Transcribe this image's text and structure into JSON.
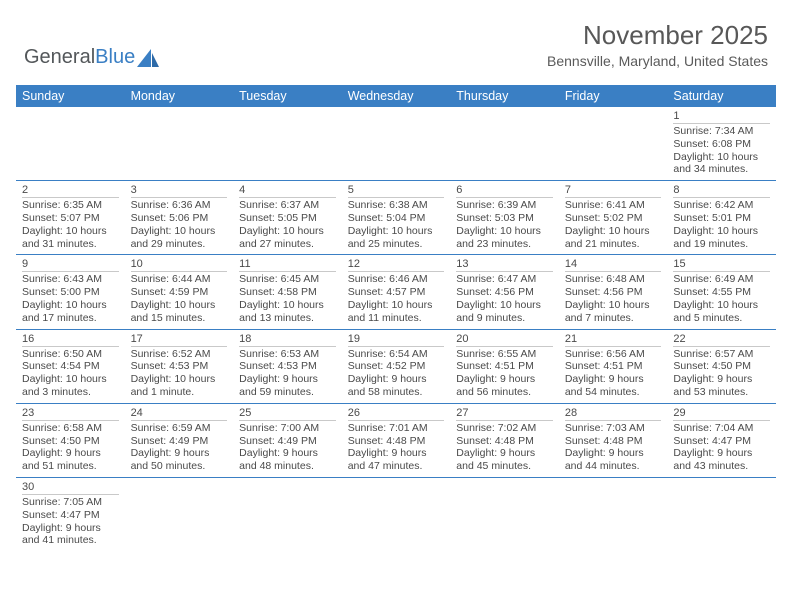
{
  "logo": {
    "text_a": "General",
    "text_b": "Blue"
  },
  "title": {
    "month": "November 2025",
    "location": "Bennsville, Maryland, United States"
  },
  "colors": {
    "header_bg": "#3a7fc4",
    "header_text": "#ffffff",
    "rule": "#3a7fc4",
    "text": "#4a4a4a",
    "logo_gray": "#53575a",
    "logo_blue": "#3a7fc4"
  },
  "day_labels": [
    "Sunday",
    "Monday",
    "Tuesday",
    "Wednesday",
    "Thursday",
    "Friday",
    "Saturday"
  ],
  "weeks": [
    [
      null,
      null,
      null,
      null,
      null,
      null,
      {
        "n": "1",
        "sunrise": "7:34 AM",
        "sunset": "6:08 PM",
        "dl1": "Daylight: 10 hours",
        "dl2": "and 34 minutes."
      }
    ],
    [
      {
        "n": "2",
        "sunrise": "6:35 AM",
        "sunset": "5:07 PM",
        "dl1": "Daylight: 10 hours",
        "dl2": "and 31 minutes."
      },
      {
        "n": "3",
        "sunrise": "6:36 AM",
        "sunset": "5:06 PM",
        "dl1": "Daylight: 10 hours",
        "dl2": "and 29 minutes."
      },
      {
        "n": "4",
        "sunrise": "6:37 AM",
        "sunset": "5:05 PM",
        "dl1": "Daylight: 10 hours",
        "dl2": "and 27 minutes."
      },
      {
        "n": "5",
        "sunrise": "6:38 AM",
        "sunset": "5:04 PM",
        "dl1": "Daylight: 10 hours",
        "dl2": "and 25 minutes."
      },
      {
        "n": "6",
        "sunrise": "6:39 AM",
        "sunset": "5:03 PM",
        "dl1": "Daylight: 10 hours",
        "dl2": "and 23 minutes."
      },
      {
        "n": "7",
        "sunrise": "6:41 AM",
        "sunset": "5:02 PM",
        "dl1": "Daylight: 10 hours",
        "dl2": "and 21 minutes."
      },
      {
        "n": "8",
        "sunrise": "6:42 AM",
        "sunset": "5:01 PM",
        "dl1": "Daylight: 10 hours",
        "dl2": "and 19 minutes."
      }
    ],
    [
      {
        "n": "9",
        "sunrise": "6:43 AM",
        "sunset": "5:00 PM",
        "dl1": "Daylight: 10 hours",
        "dl2": "and 17 minutes."
      },
      {
        "n": "10",
        "sunrise": "6:44 AM",
        "sunset": "4:59 PM",
        "dl1": "Daylight: 10 hours",
        "dl2": "and 15 minutes."
      },
      {
        "n": "11",
        "sunrise": "6:45 AM",
        "sunset": "4:58 PM",
        "dl1": "Daylight: 10 hours",
        "dl2": "and 13 minutes."
      },
      {
        "n": "12",
        "sunrise": "6:46 AM",
        "sunset": "4:57 PM",
        "dl1": "Daylight: 10 hours",
        "dl2": "and 11 minutes."
      },
      {
        "n": "13",
        "sunrise": "6:47 AM",
        "sunset": "4:56 PM",
        "dl1": "Daylight: 10 hours",
        "dl2": "and 9 minutes."
      },
      {
        "n": "14",
        "sunrise": "6:48 AM",
        "sunset": "4:56 PM",
        "dl1": "Daylight: 10 hours",
        "dl2": "and 7 minutes."
      },
      {
        "n": "15",
        "sunrise": "6:49 AM",
        "sunset": "4:55 PM",
        "dl1": "Daylight: 10 hours",
        "dl2": "and 5 minutes."
      }
    ],
    [
      {
        "n": "16",
        "sunrise": "6:50 AM",
        "sunset": "4:54 PM",
        "dl1": "Daylight: 10 hours",
        "dl2": "and 3 minutes."
      },
      {
        "n": "17",
        "sunrise": "6:52 AM",
        "sunset": "4:53 PM",
        "dl1": "Daylight: 10 hours",
        "dl2": "and 1 minute."
      },
      {
        "n": "18",
        "sunrise": "6:53 AM",
        "sunset": "4:53 PM",
        "dl1": "Daylight: 9 hours",
        "dl2": "and 59 minutes."
      },
      {
        "n": "19",
        "sunrise": "6:54 AM",
        "sunset": "4:52 PM",
        "dl1": "Daylight: 9 hours",
        "dl2": "and 58 minutes."
      },
      {
        "n": "20",
        "sunrise": "6:55 AM",
        "sunset": "4:51 PM",
        "dl1": "Daylight: 9 hours",
        "dl2": "and 56 minutes."
      },
      {
        "n": "21",
        "sunrise": "6:56 AM",
        "sunset": "4:51 PM",
        "dl1": "Daylight: 9 hours",
        "dl2": "and 54 minutes."
      },
      {
        "n": "22",
        "sunrise": "6:57 AM",
        "sunset": "4:50 PM",
        "dl1": "Daylight: 9 hours",
        "dl2": "and 53 minutes."
      }
    ],
    [
      {
        "n": "23",
        "sunrise": "6:58 AM",
        "sunset": "4:50 PM",
        "dl1": "Daylight: 9 hours",
        "dl2": "and 51 minutes."
      },
      {
        "n": "24",
        "sunrise": "6:59 AM",
        "sunset": "4:49 PM",
        "dl1": "Daylight: 9 hours",
        "dl2": "and 50 minutes."
      },
      {
        "n": "25",
        "sunrise": "7:00 AM",
        "sunset": "4:49 PM",
        "dl1": "Daylight: 9 hours",
        "dl2": "and 48 minutes."
      },
      {
        "n": "26",
        "sunrise": "7:01 AM",
        "sunset": "4:48 PM",
        "dl1": "Daylight: 9 hours",
        "dl2": "and 47 minutes."
      },
      {
        "n": "27",
        "sunrise": "7:02 AM",
        "sunset": "4:48 PM",
        "dl1": "Daylight: 9 hours",
        "dl2": "and 45 minutes."
      },
      {
        "n": "28",
        "sunrise": "7:03 AM",
        "sunset": "4:48 PM",
        "dl1": "Daylight: 9 hours",
        "dl2": "and 44 minutes."
      },
      {
        "n": "29",
        "sunrise": "7:04 AM",
        "sunset": "4:47 PM",
        "dl1": "Daylight: 9 hours",
        "dl2": "and 43 minutes."
      }
    ],
    [
      {
        "n": "30",
        "sunrise": "7:05 AM",
        "sunset": "4:47 PM",
        "dl1": "Daylight: 9 hours",
        "dl2": "and 41 minutes."
      },
      null,
      null,
      null,
      null,
      null,
      null
    ]
  ],
  "labels": {
    "sunrise_prefix": "Sunrise: ",
    "sunset_prefix": "Sunset: "
  }
}
